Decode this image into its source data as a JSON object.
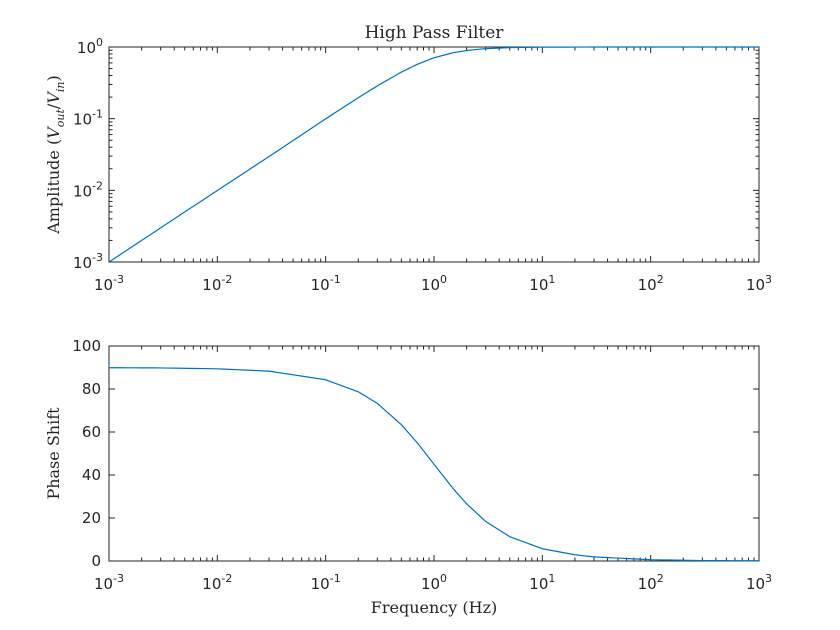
{
  "chart_data": [
    {
      "type": "line",
      "title": "High Pass Filter",
      "ylabel": "Amplitude (V_out/V_in)",
      "ylabel_parts": [
        "Amplitude (",
        "V",
        "out",
        "/",
        "V",
        "in",
        ")"
      ],
      "xlabel": "",
      "xscale": "log",
      "yscale": "log",
      "xlim": [
        0.001,
        1000
      ],
      "ylim": [
        0.001,
        1
      ],
      "x_ticks": [
        {
          "base": "10",
          "exp": "-3"
        },
        {
          "base": "10",
          "exp": "-2"
        },
        {
          "base": "10",
          "exp": "-1"
        },
        {
          "base": "10",
          "exp": "0"
        },
        {
          "base": "10",
          "exp": "1"
        },
        {
          "base": "10",
          "exp": "2"
        },
        {
          "base": "10",
          "exp": "3"
        }
      ],
      "y_ticks": [
        {
          "base": "10",
          "exp": "-3"
        },
        {
          "base": "10",
          "exp": "-2"
        },
        {
          "base": "10",
          "exp": "-1"
        },
        {
          "base": "10",
          "exp": "0"
        }
      ],
      "grid": false,
      "series": [
        {
          "color": "#0072bd",
          "x": [
            0.001,
            0.003,
            0.01,
            0.03,
            0.1,
            0.2,
            0.3,
            0.5,
            0.7,
            1,
            1.5,
            2,
            3,
            5,
            10,
            30,
            100,
            1000
          ],
          "y": [
            0.001,
            0.003,
            0.00995,
            0.0296,
            0.0995,
            0.196,
            0.287,
            0.447,
            0.573,
            0.707,
            0.832,
            0.894,
            0.949,
            0.981,
            0.995,
            0.999,
            1.0,
            1.0
          ]
        }
      ]
    },
    {
      "type": "line",
      "title": "",
      "ylabel": "Phase Shift",
      "xlabel": "Frequency (Hz)",
      "xscale": "log",
      "yscale": "linear",
      "xlim": [
        0.001,
        1000
      ],
      "ylim": [
        0,
        100
      ],
      "x_ticks": [
        {
          "base": "10",
          "exp": "-3"
        },
        {
          "base": "10",
          "exp": "-2"
        },
        {
          "base": "10",
          "exp": "-1"
        },
        {
          "base": "10",
          "exp": "0"
        },
        {
          "base": "10",
          "exp": "1"
        },
        {
          "base": "10",
          "exp": "2"
        },
        {
          "base": "10",
          "exp": "3"
        }
      ],
      "y_ticks": [
        "0",
        "20",
        "40",
        "60",
        "80",
        "100"
      ],
      "grid": false,
      "series": [
        {
          "color": "#0072bd",
          "x": [
            0.001,
            0.003,
            0.01,
            0.03,
            0.1,
            0.2,
            0.3,
            0.5,
            0.7,
            1,
            1.5,
            2,
            3,
            5,
            10,
            20,
            30,
            100,
            300,
            1000
          ],
          "y": [
            89.9,
            89.8,
            89.4,
            88.3,
            84.3,
            78.7,
            73.3,
            63.4,
            55.0,
            45.0,
            33.7,
            26.6,
            18.4,
            11.3,
            5.7,
            2.9,
            1.9,
            0.6,
            0.2,
            0.1
          ]
        }
      ]
    }
  ]
}
